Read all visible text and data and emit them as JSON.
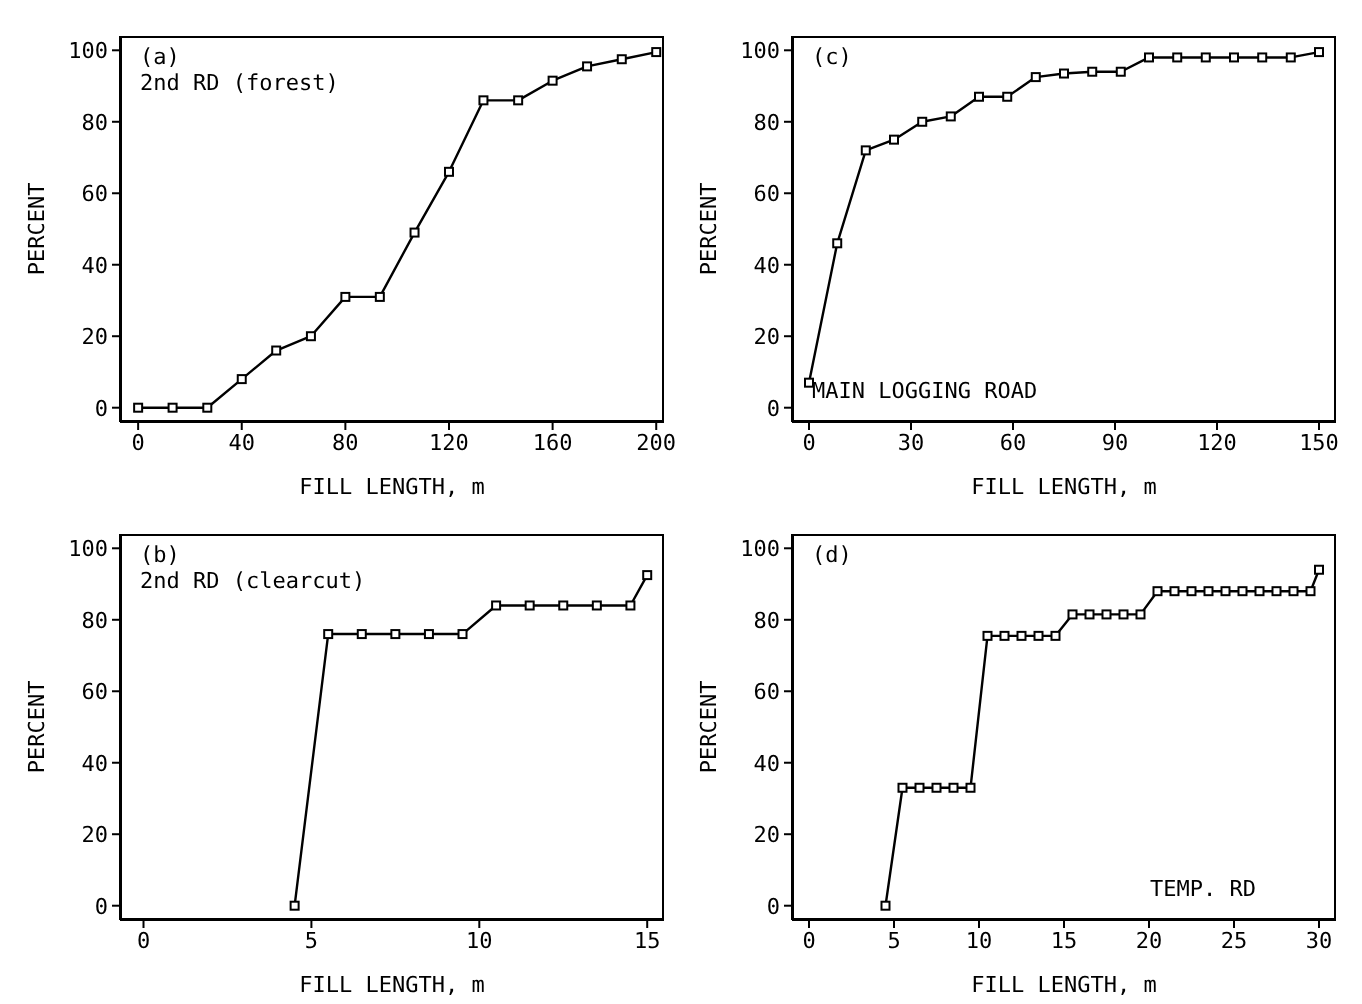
{
  "chart_data": [
    {
      "type": "line",
      "xlabel": "FILL LENGTH, m",
      "ylabel": "PERCENT",
      "annotations": [
        "(a)",
        "2nd RD (forest)"
      ],
      "xlim": [
        -7,
        203
      ],
      "xticks": [
        0,
        40,
        80,
        120,
        160,
        200
      ],
      "ylim": [
        -4,
        104
      ],
      "yticks": [
        0,
        20,
        40,
        60,
        80,
        100
      ],
      "marker": "square",
      "line_style": "solid",
      "grid": false,
      "legend": false,
      "x": [
        0,
        13.3,
        26.7,
        40,
        53.3,
        66.7,
        80,
        93.3,
        106.7,
        120,
        133.3,
        146.7,
        160,
        173.3,
        186.7,
        200
      ],
      "series": [
        {
          "color": "#000000",
          "values": [
            0,
            0,
            0,
            8,
            16,
            20,
            31,
            31,
            49,
            66,
            86,
            86,
            91.5,
            95.5,
            97.5,
            99.5
          ]
        }
      ]
    },
    {
      "type": "line",
      "xlabel": "FILL LENGTH, m",
      "ylabel": "PERCENT",
      "annotations": [
        "(c)",
        "MAIN LOGGING ROAD"
      ],
      "xlim": [
        -5,
        155
      ],
      "xticks": [
        0,
        30,
        60,
        90,
        120,
        150
      ],
      "ylim": [
        -4,
        104
      ],
      "yticks": [
        0,
        20,
        40,
        60,
        80,
        100
      ],
      "marker": "square",
      "line_style": "solid",
      "grid": false,
      "legend": false,
      "x": [
        0,
        8.3,
        16.7,
        25,
        33.3,
        41.7,
        50,
        58.3,
        66.7,
        75,
        83.3,
        91.7,
        100,
        108.3,
        116.7,
        125,
        133.3,
        141.7,
        150
      ],
      "series": [
        {
          "color": "#000000",
          "values": [
            7,
            46,
            72,
            75,
            80,
            81.5,
            87,
            87,
            92.5,
            93.5,
            94,
            94,
            98,
            98,
            98,
            98,
            98,
            98,
            99.5
          ]
        }
      ]
    },
    {
      "type": "line",
      "xlabel": "FILL LENGTH, m",
      "ylabel": "PERCENT",
      "annotations": [
        "(b)",
        "2nd RD (clearcut)"
      ],
      "xlim": [
        -0.7,
        15.5
      ],
      "xticks": [
        0,
        5,
        10,
        15
      ],
      "ylim": [
        -4,
        104
      ],
      "yticks": [
        0,
        20,
        40,
        60,
        80,
        100
      ],
      "marker": "square",
      "line_style": "solid",
      "grid": false,
      "legend": false,
      "x": [
        4.5,
        5.5,
        6.5,
        7.5,
        8.5,
        9.5,
        10.5,
        11.5,
        12.5,
        13.5,
        14.5,
        15
      ],
      "series": [
        {
          "color": "#000000",
          "values": [
            0,
            76,
            76,
            76,
            76,
            76,
            84,
            84,
            84,
            84,
            84,
            92.5
          ]
        }
      ]
    },
    {
      "type": "line",
      "xlabel": "FILL LENGTH, m",
      "ylabel": "PERCENT",
      "annotations": [
        "(d)",
        "TEMP. RD"
      ],
      "xlim": [
        -1,
        31
      ],
      "xticks": [
        0,
        5,
        10,
        15,
        20,
        25,
        30
      ],
      "ylim": [
        -4,
        104
      ],
      "yticks": [
        0,
        20,
        40,
        60,
        80,
        100
      ],
      "marker": "square",
      "line_style": "solid",
      "grid": false,
      "legend": false,
      "x": [
        4.5,
        5.5,
        6.5,
        7.5,
        8.5,
        9.5,
        10.5,
        11.5,
        12.5,
        13.5,
        14.5,
        15.5,
        16.5,
        17.5,
        18.5,
        19.5,
        20.5,
        21.5,
        22.5,
        23.5,
        24.5,
        25.5,
        26.5,
        27.5,
        28.5,
        29.5,
        30
      ],
      "series": [
        {
          "color": "#000000",
          "values": [
            0,
            33,
            33,
            33,
            33,
            33,
            75.5,
            75.5,
            75.5,
            75.5,
            75.5,
            81.5,
            81.5,
            81.5,
            81.5,
            81.5,
            88,
            88,
            88,
            88,
            88,
            88,
            88,
            88,
            88,
            88,
            94
          ]
        }
      ]
    }
  ]
}
